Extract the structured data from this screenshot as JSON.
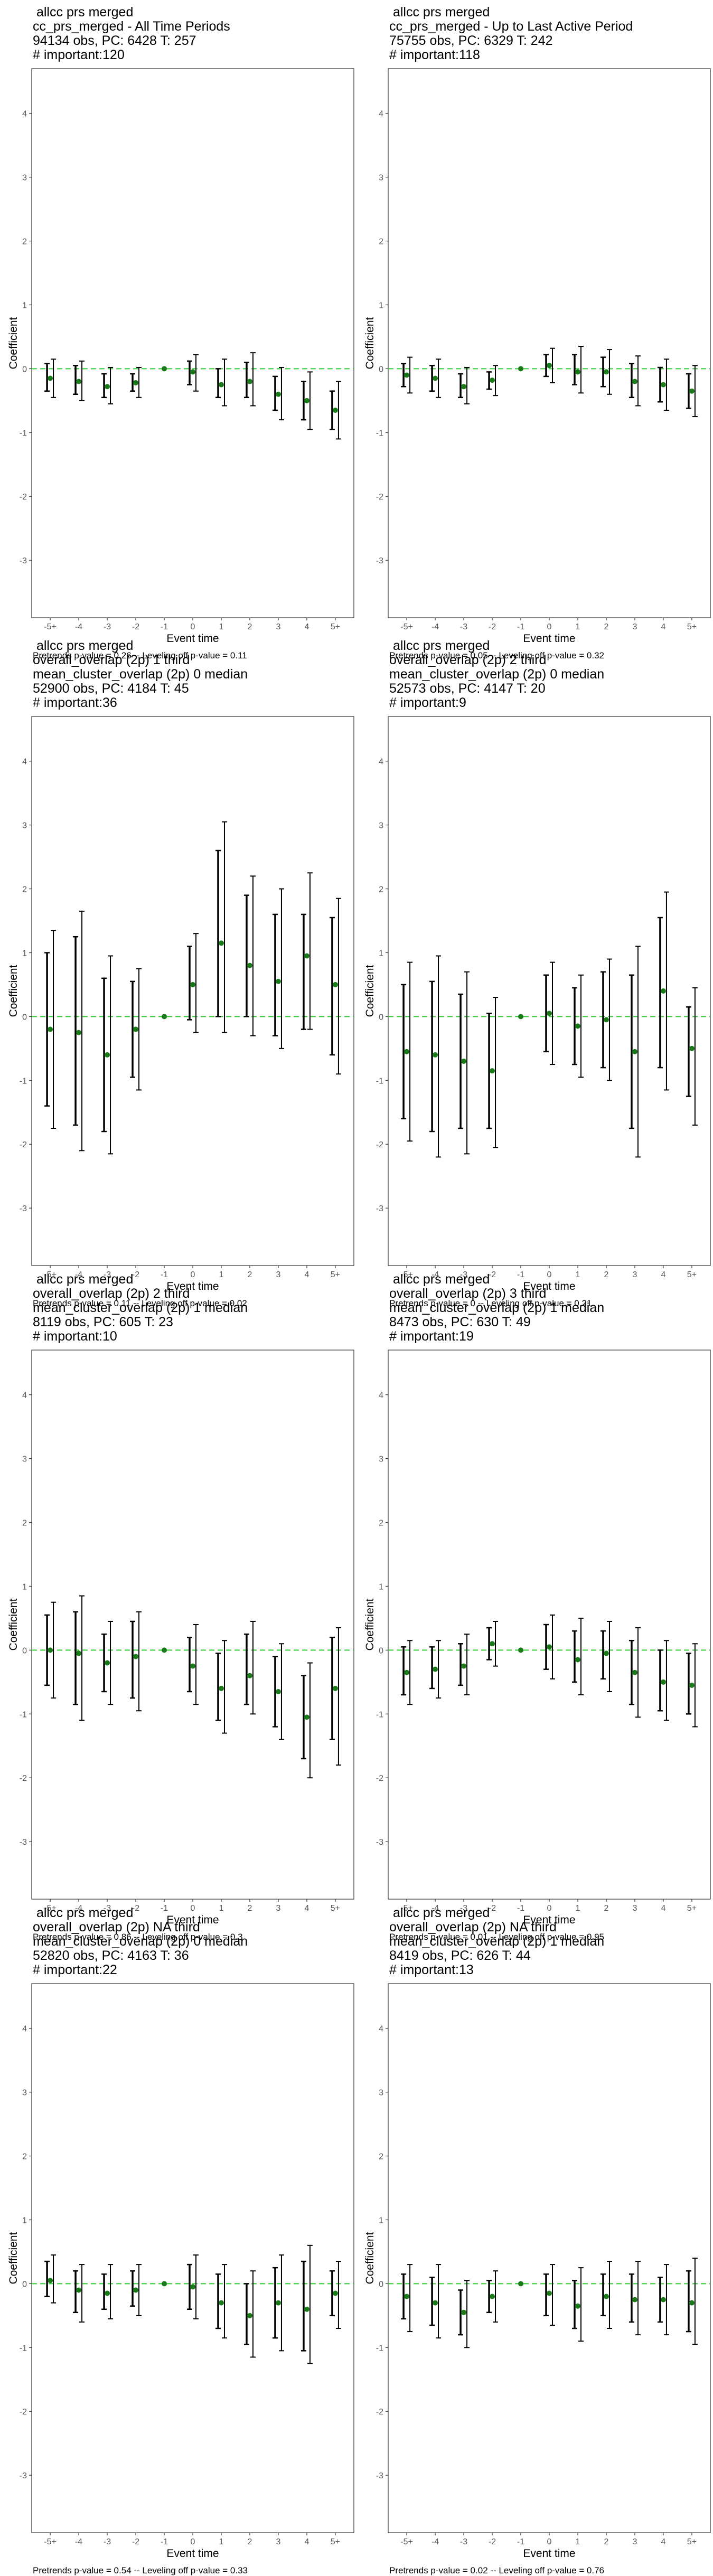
{
  "chart_data": [
    {
      "type": "scatter",
      "title_lines": [
        "allcc prs merged",
        "cc_prs_merged - All Time Periods",
        "94134 obs, PC: 6428 T: 257",
        "# important:120"
      ],
      "xlabel": "Event time",
      "ylabel": "Coefficient",
      "categories": [
        "-5+",
        "-4",
        "-3",
        "-2",
        "-1",
        "0",
        "1",
        "2",
        "3",
        "4",
        "5+"
      ],
      "ylim": [
        -3.9,
        4.7
      ],
      "yticks": [
        -3,
        -2,
        -1,
        0,
        1,
        2,
        3,
        4
      ],
      "reference_line": 0,
      "estimates": [
        -0.15,
        -0.2,
        -0.28,
        -0.22,
        0,
        -0.05,
        -0.25,
        -0.2,
        -0.4,
        -0.5,
        -0.65
      ],
      "ci_outer": [
        [
          -0.45,
          0.15
        ],
        [
          -0.5,
          0.12
        ],
        [
          -0.55,
          0.02
        ],
        [
          -0.45,
          0.02
        ],
        [
          0,
          0
        ],
        [
          -0.35,
          0.22
        ],
        [
          -0.58,
          0.15
        ],
        [
          -0.58,
          0.25
        ],
        [
          -0.8,
          0.02
        ],
        [
          -0.95,
          -0.05
        ],
        [
          -1.1,
          -0.2
        ]
      ],
      "ci_inner": [
        [
          -0.35,
          0.08
        ],
        [
          -0.4,
          0.05
        ],
        [
          -0.45,
          -0.08
        ],
        [
          -0.35,
          -0.08
        ],
        [
          0,
          0
        ],
        [
          -0.25,
          0.12
        ],
        [
          -0.45,
          0.0
        ],
        [
          -0.45,
          0.1
        ],
        [
          -0.65,
          -0.12
        ],
        [
          -0.8,
          -0.2
        ],
        [
          -0.95,
          -0.35
        ]
      ],
      "footnote": "Pretrends p-value = 0.26 -- Leveling off p-value = 0.11"
    },
    {
      "type": "scatter",
      "title_lines": [
        "allcc prs merged",
        "cc_prs_merged - Up to Last Active Period",
        "75755 obs, PC: 6329 T: 242",
        "# important:118"
      ],
      "xlabel": "Event time",
      "ylabel": "Coefficient",
      "categories": [
        "-5+",
        "-4",
        "-3",
        "-2",
        "-1",
        "0",
        "1",
        "2",
        "3",
        "4",
        "5+"
      ],
      "ylim": [
        -3.9,
        4.7
      ],
      "yticks": [
        -3,
        -2,
        -1,
        0,
        1,
        2,
        3,
        4
      ],
      "reference_line": 0,
      "estimates": [
        -0.1,
        -0.15,
        -0.28,
        -0.18,
        0,
        0.05,
        -0.05,
        -0.05,
        -0.2,
        -0.25,
        -0.35
      ],
      "ci_outer": [
        [
          -0.38,
          0.18
        ],
        [
          -0.45,
          0.15
        ],
        [
          -0.55,
          0.02
        ],
        [
          -0.42,
          0.05
        ],
        [
          0,
          0
        ],
        [
          -0.22,
          0.32
        ],
        [
          -0.38,
          0.35
        ],
        [
          -0.4,
          0.3
        ],
        [
          -0.58,
          0.2
        ],
        [
          -0.65,
          0.15
        ],
        [
          -0.75,
          0.05
        ]
      ],
      "ci_inner": [
        [
          -0.28,
          0.08
        ],
        [
          -0.35,
          0.05
        ],
        [
          -0.45,
          -0.08
        ],
        [
          -0.32,
          -0.05
        ],
        [
          0,
          0
        ],
        [
          -0.12,
          0.22
        ],
        [
          -0.25,
          0.22
        ],
        [
          -0.28,
          0.18
        ],
        [
          -0.45,
          0.08
        ],
        [
          -0.52,
          0.02
        ],
        [
          -0.62,
          -0.08
        ]
      ],
      "footnote": "Pretrends p-value = 0.05 -- Leveling off p-value = 0.32"
    },
    {
      "type": "scatter",
      "title_lines": [
        "allcc prs merged",
        "overall_overlap (2p) 1 third",
        "mean_cluster_overlap (2p) 0 median",
        "52900 obs, PC: 4184 T: 45",
        "# important:36"
      ],
      "xlabel": "Event time",
      "ylabel": "Coefficient",
      "categories": [
        "-5+",
        "-4",
        "-3",
        "-2",
        "-1",
        "0",
        "1",
        "2",
        "3",
        "4",
        "5+"
      ],
      "ylim": [
        -3.9,
        4.7
      ],
      "yticks": [
        -3,
        -2,
        -1,
        0,
        1,
        2,
        3,
        4
      ],
      "reference_line": 0,
      "estimates": [
        -0.2,
        -0.25,
        -0.6,
        -0.2,
        0,
        0.5,
        1.15,
        0.8,
        0.55,
        0.95,
        0.5
      ],
      "ci_outer": [
        [
          -1.75,
          1.35
        ],
        [
          -2.1,
          1.65
        ],
        [
          -2.15,
          0.95
        ],
        [
          -1.15,
          0.75
        ],
        [
          0,
          0
        ],
        [
          -0.25,
          1.3
        ],
        [
          -0.25,
          3.05
        ],
        [
          -0.3,
          2.2
        ],
        [
          -0.5,
          2.0
        ],
        [
          -0.2,
          2.25
        ],
        [
          -0.9,
          1.85
        ]
      ],
      "ci_inner": [
        [
          -1.4,
          1.0
        ],
        [
          -1.7,
          1.25
        ],
        [
          -1.8,
          0.6
        ],
        [
          -0.95,
          0.55
        ],
        [
          0,
          0
        ],
        [
          -0.05,
          1.1
        ],
        [
          0.0,
          2.6
        ],
        [
          0.0,
          1.9
        ],
        [
          -0.3,
          1.6
        ],
        [
          -0.2,
          1.6
        ],
        [
          -0.6,
          1.55
        ]
      ],
      "footnote": "Pretrends p-value = 0.11 -- Leveling off p-value = 0.02"
    },
    {
      "type": "scatter",
      "title_lines": [
        "allcc prs merged",
        "overall_overlap (2p) 2 third",
        "mean_cluster_overlap (2p) 0 median",
        "52573 obs, PC: 4147 T: 20",
        "# important:9"
      ],
      "xlabel": "Event time",
      "ylabel": "Coefficient",
      "categories": [
        "-5+",
        "-4",
        "-3",
        "-2",
        "-1",
        "0",
        "1",
        "2",
        "3",
        "4",
        "5+"
      ],
      "ylim": [
        -3.9,
        4.7
      ],
      "yticks": [
        -3,
        -2,
        -1,
        0,
        1,
        2,
        3,
        4
      ],
      "reference_line": 0,
      "estimates": [
        -0.55,
        -0.6,
        -0.7,
        -0.85,
        0,
        0.05,
        -0.15,
        -0.05,
        -0.55,
        0.4,
        -0.5
      ],
      "ci_outer": [
        [
          -1.95,
          0.85
        ],
        [
          -2.2,
          0.95
        ],
        [
          -2.15,
          0.7
        ],
        [
          -2.05,
          0.3
        ],
        [
          0,
          0
        ],
        [
          -0.75,
          0.85
        ],
        [
          -0.95,
          0.65
        ],
        [
          -1.0,
          0.9
        ],
        [
          -2.2,
          1.1
        ],
        [
          -1.15,
          1.95
        ],
        [
          -1.7,
          0.45
        ]
      ],
      "ci_inner": [
        [
          -1.6,
          0.5
        ],
        [
          -1.8,
          0.55
        ],
        [
          -1.75,
          0.35
        ],
        [
          -1.75,
          0.05
        ],
        [
          0,
          0
        ],
        [
          -0.55,
          0.65
        ],
        [
          -0.75,
          0.45
        ],
        [
          -0.8,
          0.7
        ],
        [
          -1.75,
          0.65
        ],
        [
          -0.8,
          1.55
        ],
        [
          -1.25,
          0.15
        ]
      ],
      "footnote": "Pretrends p-value = 0 -- Leveling off p-value = 0.21"
    },
    {
      "type": "scatter",
      "title_lines": [
        "allcc prs merged",
        "overall_overlap (2p) 2 third",
        "mean_cluster_overlap (2p) 1 median",
        "8119 obs, PC: 605 T: 23",
        "# important:10"
      ],
      "xlabel": "Event time",
      "ylabel": "Coefficient",
      "categories": [
        "-5+",
        "-4",
        "-3",
        "-2",
        "-1",
        "0",
        "1",
        "2",
        "3",
        "4",
        "5+"
      ],
      "ylim": [
        -3.9,
        4.7
      ],
      "yticks": [
        -3,
        -2,
        -1,
        0,
        1,
        2,
        3,
        4
      ],
      "reference_line": 0,
      "estimates": [
        0.0,
        -0.05,
        -0.2,
        -0.1,
        0,
        -0.25,
        -0.6,
        -0.4,
        -0.65,
        -1.05,
        -0.6
      ],
      "ci_outer": [
        [
          -0.75,
          0.75
        ],
        [
          -1.1,
          0.85
        ],
        [
          -0.85,
          0.45
        ],
        [
          -0.95,
          0.6
        ],
        [
          0,
          0
        ],
        [
          -0.85,
          0.4
        ],
        [
          -1.3,
          0.15
        ],
        [
          -1.0,
          0.45
        ],
        [
          -1.4,
          0.1
        ],
        [
          -2.0,
          -0.2
        ],
        [
          -1.8,
          0.35
        ]
      ],
      "ci_inner": [
        [
          -0.55,
          0.55
        ],
        [
          -0.85,
          0.6
        ],
        [
          -0.65,
          0.25
        ],
        [
          -0.75,
          0.45
        ],
        [
          0,
          0
        ],
        [
          -0.65,
          0.2
        ],
        [
          -1.1,
          -0.05
        ],
        [
          -0.85,
          0.25
        ],
        [
          -1.2,
          -0.1
        ],
        [
          -1.7,
          -0.4
        ],
        [
          -1.4,
          0.2
        ]
      ],
      "footnote": "Pretrends p-value = 0.86 -- Leveling off p-value = 0.3"
    },
    {
      "type": "scatter",
      "title_lines": [
        "allcc prs merged",
        "overall_overlap (2p) 3 third",
        "mean_cluster_overlap (2p) 1 median",
        "8473 obs, PC: 630 T: 49",
        "# important:19"
      ],
      "xlabel": "Event time",
      "ylabel": "Coefficient",
      "categories": [
        "-5+",
        "-4",
        "-3",
        "-2",
        "-1",
        "0",
        "1",
        "2",
        "3",
        "4",
        "5+"
      ],
      "ylim": [
        -3.9,
        4.7
      ],
      "yticks": [
        -3,
        -2,
        -1,
        0,
        1,
        2,
        3,
        4
      ],
      "reference_line": 0,
      "estimates": [
        -0.35,
        -0.3,
        -0.25,
        0.1,
        0,
        0.05,
        -0.15,
        -0.05,
        -0.35,
        -0.5,
        -0.55
      ],
      "ci_outer": [
        [
          -0.85,
          0.15
        ],
        [
          -0.75,
          0.15
        ],
        [
          -0.7,
          0.25
        ],
        [
          -0.25,
          0.45
        ],
        [
          0,
          0
        ],
        [
          -0.45,
          0.55
        ],
        [
          -0.7,
          0.5
        ],
        [
          -0.65,
          0.45
        ],
        [
          -1.05,
          0.35
        ],
        [
          -1.1,
          0.15
        ],
        [
          -1.2,
          0.1
        ]
      ],
      "ci_inner": [
        [
          -0.7,
          0.05
        ],
        [
          -0.6,
          0.05
        ],
        [
          -0.55,
          0.1
        ],
        [
          -0.15,
          0.35
        ],
        [
          0,
          0
        ],
        [
          -0.3,
          0.4
        ],
        [
          -0.5,
          0.3
        ],
        [
          -0.45,
          0.3
        ],
        [
          -0.85,
          0.15
        ],
        [
          -0.95,
          0.0
        ],
        [
          -1.0,
          -0.05
        ]
      ],
      "footnote": "Pretrends p-value = 0.01 -- Leveling off p-value = 0.95"
    },
    {
      "type": "scatter",
      "title_lines": [
        "allcc prs merged",
        "overall_overlap (2p) NA third",
        "mean_cluster_overlap (2p) 0 median",
        "52820 obs, PC: 4163 T: 36",
        "# important:22"
      ],
      "xlabel": "Event time",
      "ylabel": "Coefficient",
      "categories": [
        "-5+",
        "-4",
        "-3",
        "-2",
        "-1",
        "0",
        "1",
        "2",
        "3",
        "4",
        "5+"
      ],
      "ylim": [
        -3.9,
        4.7
      ],
      "yticks": [
        -3,
        -2,
        -1,
        0,
        1,
        2,
        3,
        4
      ],
      "reference_line": 0,
      "estimates": [
        0.05,
        -0.1,
        -0.15,
        -0.1,
        0,
        -0.05,
        -0.3,
        -0.5,
        -0.3,
        -0.4,
        -0.15
      ],
      "ci_outer": [
        [
          -0.3,
          0.45
        ],
        [
          -0.6,
          0.3
        ],
        [
          -0.55,
          0.3
        ],
        [
          -0.5,
          0.3
        ],
        [
          0,
          0
        ],
        [
          -0.55,
          0.45
        ],
        [
          -0.85,
          0.3
        ],
        [
          -1.15,
          0.2
        ],
        [
          -1.05,
          0.45
        ],
        [
          -1.25,
          0.6
        ],
        [
          -0.7,
          0.35
        ]
      ],
      "ci_inner": [
        [
          -0.2,
          0.35
        ],
        [
          -0.45,
          0.2
        ],
        [
          -0.4,
          0.15
        ],
        [
          -0.35,
          0.2
        ],
        [
          0,
          0
        ],
        [
          -0.4,
          0.3
        ],
        [
          -0.7,
          0.15
        ],
        [
          -0.95,
          0.0
        ],
        [
          -0.85,
          0.25
        ],
        [
          -1.05,
          0.35
        ],
        [
          -0.5,
          0.2
        ]
      ],
      "footnote": "Pretrends p-value = 0.54 -- Leveling off p-value = 0.33"
    },
    {
      "type": "scatter",
      "title_lines": [
        "allcc prs merged",
        "overall_overlap (2p) NA third",
        "mean_cluster_overlap (2p) 1 median",
        "8419 obs, PC: 626 T: 44",
        "# important:13"
      ],
      "xlabel": "Event time",
      "ylabel": "Coefficient",
      "categories": [
        "-5+",
        "-4",
        "-3",
        "-2",
        "-1",
        "0",
        "1",
        "2",
        "3",
        "4",
        "5+"
      ],
      "ylim": [
        -3.9,
        4.7
      ],
      "yticks": [
        -3,
        -2,
        -1,
        0,
        1,
        2,
        3,
        4
      ],
      "reference_line": 0,
      "estimates": [
        -0.2,
        -0.3,
        -0.45,
        -0.2,
        0,
        -0.15,
        -0.35,
        -0.2,
        -0.25,
        -0.25,
        -0.3
      ],
      "ci_outer": [
        [
          -0.75,
          0.3
        ],
        [
          -0.85,
          0.3
        ],
        [
          -1.0,
          0.05
        ],
        [
          -0.6,
          0.2
        ],
        [
          0,
          0
        ],
        [
          -0.65,
          0.3
        ],
        [
          -0.9,
          0.25
        ],
        [
          -0.7,
          0.35
        ],
        [
          -0.8,
          0.35
        ],
        [
          -0.8,
          0.3
        ],
        [
          -0.95,
          0.4
        ]
      ],
      "ci_inner": [
        [
          -0.55,
          0.15
        ],
        [
          -0.65,
          0.1
        ],
        [
          -0.8,
          -0.1
        ],
        [
          -0.45,
          0.05
        ],
        [
          0,
          0
        ],
        [
          -0.5,
          0.15
        ],
        [
          -0.7,
          0.05
        ],
        [
          -0.5,
          0.15
        ],
        [
          -0.6,
          0.15
        ],
        [
          -0.6,
          0.1
        ],
        [
          -0.75,
          0.2
        ]
      ],
      "footnote": "Pretrends p-value = 0.02 -- Leveling off p-value = 0.76"
    }
  ],
  "colors": {
    "point": "#1a7a1a",
    "reference_line": "#33cc33",
    "ci": "#000000",
    "axis": "#333333",
    "tick_text": "#555555"
  }
}
